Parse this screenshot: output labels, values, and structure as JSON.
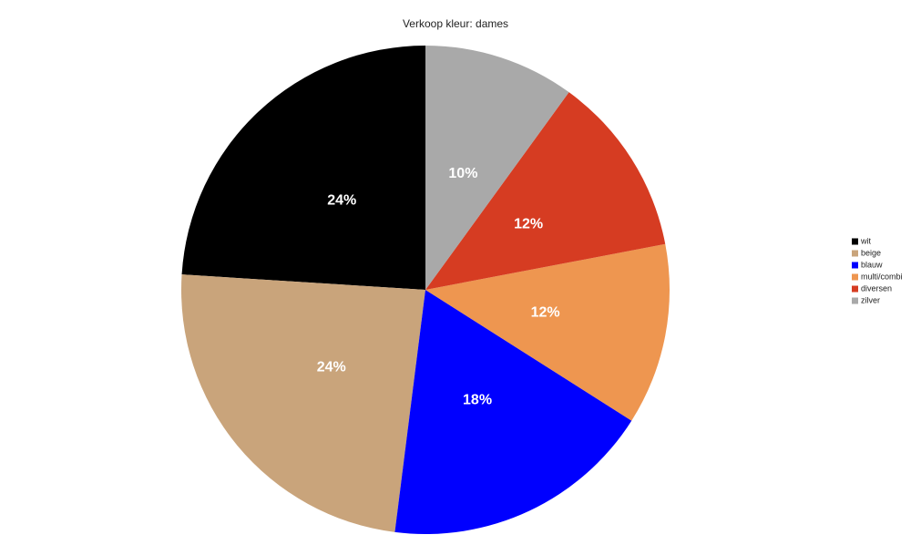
{
  "chart_data": {
    "type": "pie",
    "title": "Verkoop kleur: dames",
    "categories": [
      "wit",
      "beige",
      "blauw",
      "multi/combi",
      "diversen",
      "zilver"
    ],
    "values": [
      24,
      24,
      18,
      12,
      12,
      10
    ],
    "value_labels": [
      "24%",
      "24%",
      "18%",
      "12%",
      "12%",
      "10%"
    ],
    "colors": [
      "#000000",
      "#c9a47b",
      "#0000ff",
      "#ee9650",
      "#d63c22",
      "#a9a9a9"
    ],
    "legend": "right"
  }
}
